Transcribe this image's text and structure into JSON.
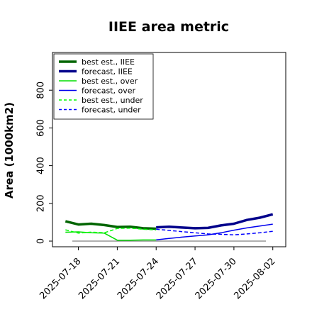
{
  "chart_data": {
    "type": "line",
    "title": "IIEE area metric",
    "xlabel": "",
    "ylabel": "Area (1000km2)",
    "ylim": [
      -30,
      1000
    ],
    "xlim": [
      "2025-07-16",
      "2025-08-03"
    ],
    "yticks": [
      0,
      200,
      400,
      600,
      800
    ],
    "ytick_labels": [
      "0",
      "200",
      "400",
      "600",
      "800"
    ],
    "xticks": [
      "2025-07-18",
      "2025-07-21",
      "2025-07-24",
      "2025-07-27",
      "2025-07-30",
      "2025-08-02"
    ],
    "xtick_labels": [
      "2025-07-18",
      "2025-07-21",
      "2025-07-24",
      "2025-07-27",
      "2025-07-30",
      "2025-08-02"
    ],
    "highlight_tick": "2025-07-24",
    "highlight_color": "#228b22",
    "grid": false,
    "legend_position": "upper-left",
    "zero_line": true,
    "series": [
      {
        "name": "best est., IIEE",
        "color": "#006400",
        "style": "solid",
        "width": 3.5,
        "x": [
          "2025-07-17",
          "2025-07-18",
          "2025-07-19",
          "2025-07-20",
          "2025-07-21",
          "2025-07-22",
          "2025-07-23",
          "2025-07-24"
        ],
        "y": [
          105,
          88,
          92,
          85,
          75,
          76,
          68,
          66
        ]
      },
      {
        "name": "forecast, IIEE",
        "color": "#00008b",
        "style": "solid",
        "width": 3.5,
        "x": [
          "2025-07-24",
          "2025-07-25",
          "2025-07-26",
          "2025-07-27",
          "2025-07-28",
          "2025-07-29",
          "2025-07-30",
          "2025-07-31",
          "2025-08-01",
          "2025-08-02"
        ],
        "y": [
          73,
          76,
          72,
          68,
          70,
          83,
          92,
          112,
          124,
          142
        ]
      },
      {
        "name": "best est., over",
        "color": "#00dd00",
        "style": "solid",
        "width": 1.5,
        "x": [
          "2025-07-17",
          "2025-07-18",
          "2025-07-19",
          "2025-07-20",
          "2025-07-21",
          "2025-07-22",
          "2025-07-23",
          "2025-07-24"
        ],
        "y": [
          47,
          49,
          44,
          42,
          5,
          5,
          6,
          6
        ]
      },
      {
        "name": "forecast, over",
        "color": "#0000ee",
        "style": "solid",
        "width": 1.5,
        "x": [
          "2025-07-24",
          "2025-07-25",
          "2025-07-26",
          "2025-07-27",
          "2025-07-28",
          "2025-07-29",
          "2025-07-30",
          "2025-07-31",
          "2025-08-01",
          "2025-08-02"
        ],
        "y": [
          7,
          14,
          21,
          27,
          33,
          44,
          58,
          70,
          80,
          90
        ]
      },
      {
        "name": "best est., under",
        "color": "#00ff00",
        "style": "dashed",
        "width": 1.5,
        "x": [
          "2025-07-17",
          "2025-07-18",
          "2025-07-19",
          "2025-07-20",
          "2025-07-21",
          "2025-07-22",
          "2025-07-23",
          "2025-07-24"
        ],
        "y": [
          60,
          42,
          48,
          44,
          67,
          69,
          63,
          59
        ]
      },
      {
        "name": "forecast, under",
        "color": "#0000ff",
        "style": "dashed",
        "width": 1.5,
        "x": [
          "2025-07-24",
          "2025-07-25",
          "2025-07-26",
          "2025-07-27",
          "2025-07-28",
          "2025-07-29",
          "2025-07-30",
          "2025-07-31",
          "2025-08-01",
          "2025-08-02"
        ],
        "y": [
          63,
          57,
          50,
          44,
          38,
          36,
          33,
          38,
          44,
          52
        ]
      }
    ]
  }
}
